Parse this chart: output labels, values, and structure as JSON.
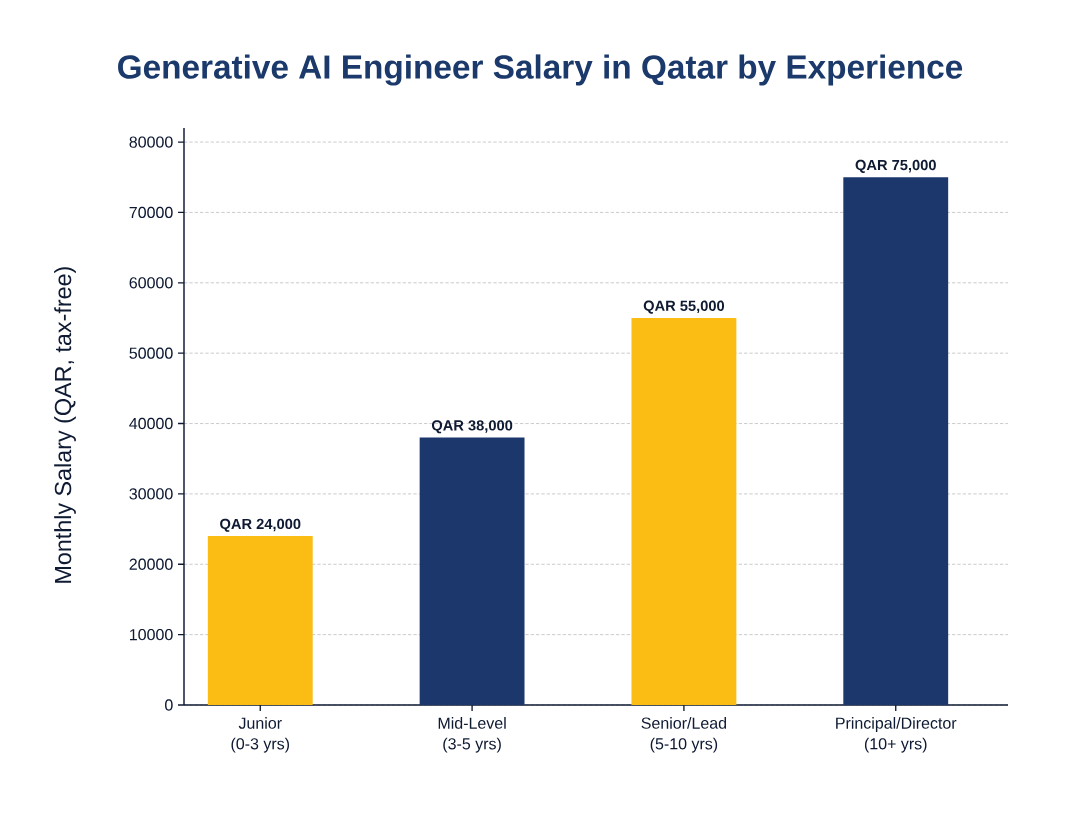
{
  "chart_data": {
    "type": "bar",
    "title": "Generative AI Engineer Salary in Qatar by Experience",
    "ylabel": "Monthly Salary (QAR, tax-free)",
    "categories": [
      "Junior\n(0-3 yrs)",
      "Mid-Level\n(3-5 yrs)",
      "Senior/Lead\n(5-10 yrs)",
      "Principal/Director\n(10+ yrs)"
    ],
    "values": [
      24000,
      38000,
      55000,
      75000
    ],
    "colors": [
      "#fbbc14",
      "#1b376c",
      "#fbbc14",
      "#1b376c"
    ],
    "value_labels": [
      "QAR 24,000",
      "QAR 38,000",
      "QAR 55,000",
      "QAR 75,000"
    ],
    "ylim": [
      0,
      82000
    ],
    "yticks": [
      0,
      10000,
      20000,
      30000,
      40000,
      50000,
      60000,
      70000,
      80000
    ],
    "grid": "y"
  }
}
